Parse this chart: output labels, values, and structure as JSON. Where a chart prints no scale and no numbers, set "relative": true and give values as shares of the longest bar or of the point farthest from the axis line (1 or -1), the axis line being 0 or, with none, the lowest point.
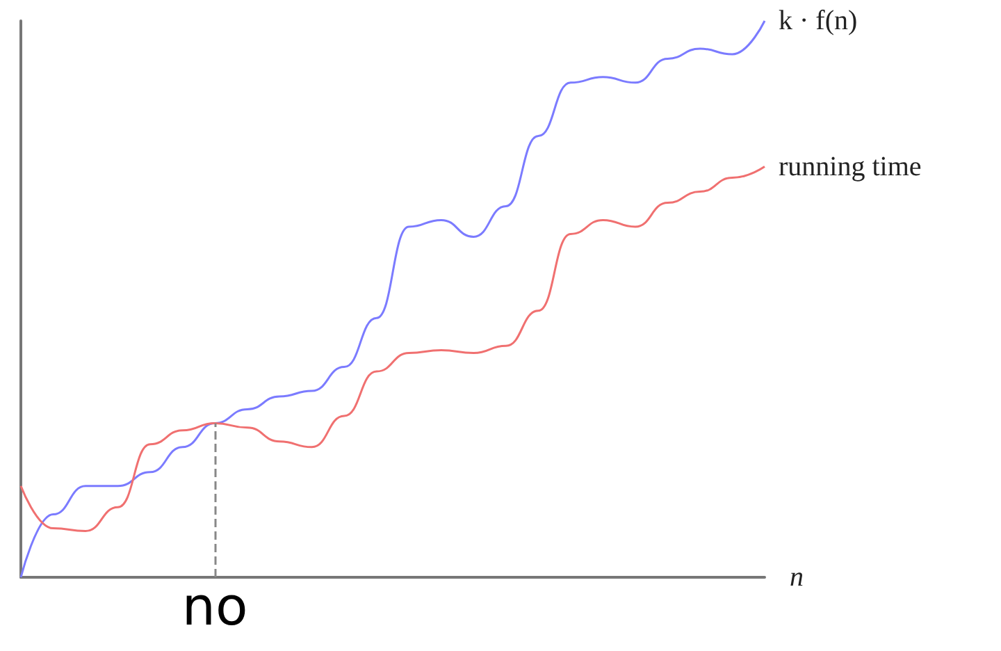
{
  "chart_data": {
    "type": "line",
    "relative": true,
    "xlabel": "n",
    "categories": [
      null,
      null,
      null,
      null,
      null,
      null,
      null,
      null,
      null,
      null,
      null,
      null,
      null,
      null,
      null,
      null,
      null,
      null,
      null,
      null,
      null,
      null,
      null,
      null
    ],
    "series": [
      {
        "name": "k · f(n)",
        "color": "#7b7bff",
        "values": [
          0,
          0.113,
          0.164,
          0.164,
          0.189,
          0.234,
          0.277,
          0.302,
          0.325,
          0.335,
          0.378,
          0.466,
          0.63,
          0.642,
          0.612,
          0.667,
          0.793,
          0.889,
          0.899,
          0.889,
          0.932,
          0.95,
          0.94,
          1
        ]
      },
      {
        "name": "running time",
        "color": "#f07070",
        "values": [
          0.164,
          0.088,
          0.083,
          0.126,
          0.239,
          0.264,
          0.277,
          0.269,
          0.244,
          0.234,
          0.29,
          0.37,
          0.403,
          0.408,
          0.403,
          0.416,
          0.479,
          0.617,
          0.642,
          0.63,
          0.673,
          0.693,
          0.718,
          0.738
        ]
      }
    ],
    "annotations": [
      "no"
    ],
    "marker": "none",
    "legend": false,
    "grid": false
  }
}
